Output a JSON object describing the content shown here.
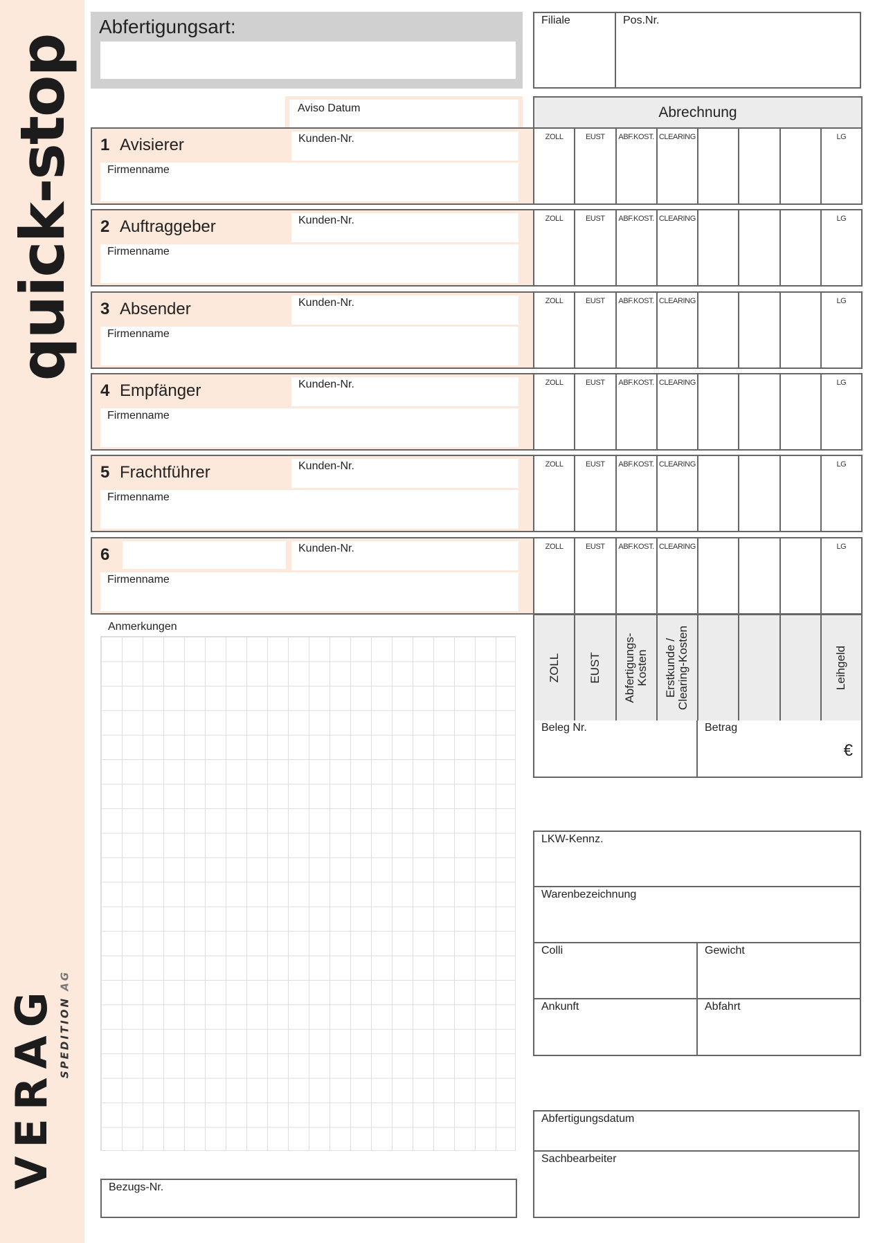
{
  "brand": {
    "product": "quick-stop",
    "company": "VERAG",
    "company_sub": "SPEDITION",
    "company_suffix": "AG"
  },
  "header": {
    "abfertigungsart_label": "Abfertigungsart:",
    "filiale_label": "Filiale",
    "posnr_label": "Pos.Nr.",
    "aviso_datum_label": "Aviso Datum",
    "abrechnung_label": "Abrechnung"
  },
  "sections": [
    {
      "number": "1",
      "title": "Avisierer"
    },
    {
      "number": "2",
      "title": "Auftraggeber"
    },
    {
      "number": "3",
      "title": "Absender"
    },
    {
      "number": "4",
      "title": "Empfänger"
    },
    {
      "number": "5",
      "title": "Frachtführer"
    },
    {
      "number": "6",
      "title": ""
    }
  ],
  "section_labels": {
    "kunden_nr": "Kunden-Nr.",
    "firmenname": "Firmenname"
  },
  "billing_columns_short": [
    "ZOLL",
    "EUST",
    "ABF.KOST.",
    "CLEARING",
    "",
    "",
    "",
    "LG"
  ],
  "billing_columns_long": [
    "ZOLL",
    "EUST",
    "Abfertigungs-\nKosten",
    "Erstkunde /\nClearing-Kosten",
    "",
    "",
    "",
    "Leihgeld"
  ],
  "beleg": {
    "beleg_label": "Beleg Nr.",
    "betrag_label": "Betrag",
    "currency": "€"
  },
  "notes": {
    "anmerkungen_label": "Anmerkungen",
    "bezugs_label": "Bezugs-Nr."
  },
  "transport": {
    "lkw_label": "LKW-Kennz.",
    "waren_label": "Warenbezeichnung",
    "colli_label": "Colli",
    "gewicht_label": "Gewicht",
    "ankunft_label": "Ankunft",
    "abfahrt_label": "Abfahrt"
  },
  "footer": {
    "abfertigungsdatum_label": "Abfertigungsdatum",
    "sachbearbeiter_label": "Sachbearbeiter"
  },
  "colors": {
    "peach": "#fde8dc",
    "gray_header": "#d0d0d0",
    "light_header": "#ececec",
    "border": "#666666"
  }
}
